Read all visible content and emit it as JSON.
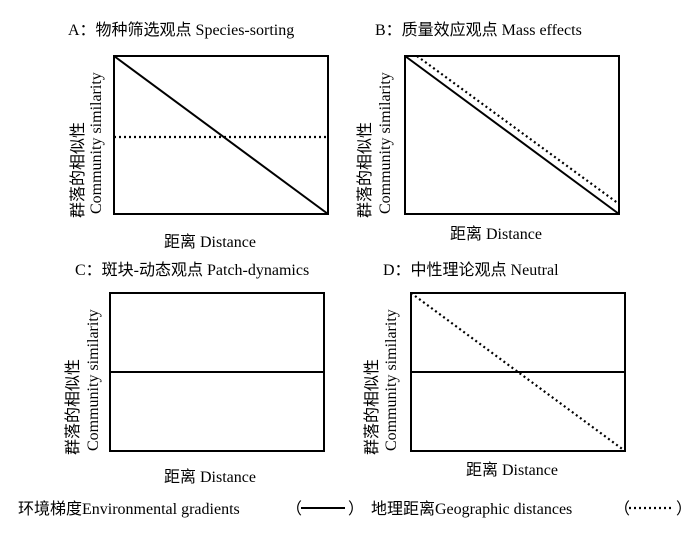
{
  "panels": [
    {
      "title": "A：物种筛选观点 Species-sorting",
      "ylabel_cn": "群落的相似性",
      "ylabel_en": "Community similarity",
      "xlabel": "距离 Distance",
      "environmental_gradients": "decreasing from high to low",
      "geographic_distances": "constant at mid level"
    },
    {
      "title": "B：质量效应观点 Mass effects",
      "ylabel_cn": "群落的相似性",
      "ylabel_en": "Community similarity",
      "xlabel": "距离 Distance",
      "environmental_gradients": "decreasing from high to low",
      "geographic_distances": "decreasing, slightly above environmental line"
    },
    {
      "title": "C：斑块-动态观点 Patch-dynamics",
      "ylabel_cn": "群落的相似性",
      "ylabel_en": "Community similarity",
      "xlabel": "距离 Distance",
      "environmental_gradients": "constant at mid level",
      "geographic_distances": "none"
    },
    {
      "title": "D：中性理论观点 Neutral",
      "ylabel_cn": "群落的相似性",
      "ylabel_en": "Community similarity",
      "xlabel": "距离 Distance",
      "environmental_gradients": "constant at mid level",
      "geographic_distances": "decreasing from high to low"
    }
  ],
  "legend": {
    "environmental": "环境梯度Environmental gradients",
    "geographic": "地理距离Geographic distances",
    "open_paren": "（",
    "close_paren": "）"
  }
}
